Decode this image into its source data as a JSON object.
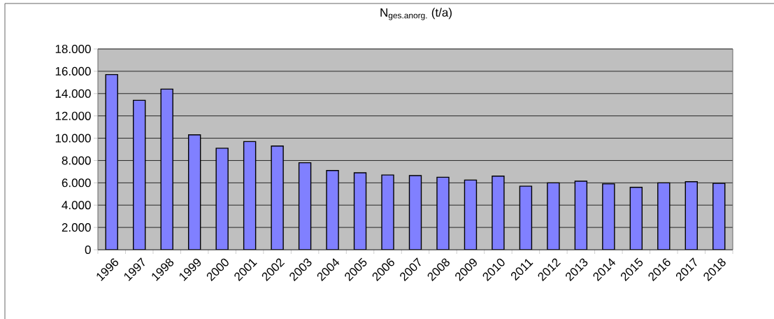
{
  "chart_data": {
    "type": "bar",
    "title": "N$_{ges.anorg.}$ (t/a)",
    "categories": [
      "1996",
      "1997",
      "1998",
      "1999",
      "2000",
      "2001",
      "2002",
      "2003",
      "2004",
      "2005",
      "2006",
      "2007",
      "2008",
      "2009",
      "2010",
      "2011",
      "2012",
      "2013",
      "2014",
      "2015",
      "2016",
      "2017",
      "2018"
    ],
    "values": [
      15700,
      13400,
      14400,
      10300,
      9100,
      9700,
      9300,
      7800,
      7100,
      6900,
      6700,
      6650,
      6500,
      6250,
      6600,
      5700,
      6000,
      6150,
      5900,
      5600,
      6000,
      6100,
      5950
    ],
    "color": "#8080ff",
    "ylim": [
      0,
      18000
    ],
    "yticks": [
      {
        "value": 0,
        "label": "0"
      },
      {
        "value": 2000,
        "label": "2.000"
      },
      {
        "value": 4000,
        "label": "4.000"
      },
      {
        "value": 6000,
        "label": "6.000"
      },
      {
        "value": 8000,
        "label": "8.000"
      },
      {
        "value": 10000,
        "label": "10.000"
      },
      {
        "value": 12000,
        "label": "12.000"
      },
      {
        "value": 14000,
        "label": "14.000"
      },
      {
        "value": 16000,
        "label": "16.000"
      },
      {
        "value": 18000,
        "label": "18.000"
      }
    ],
    "grid": "y"
  }
}
